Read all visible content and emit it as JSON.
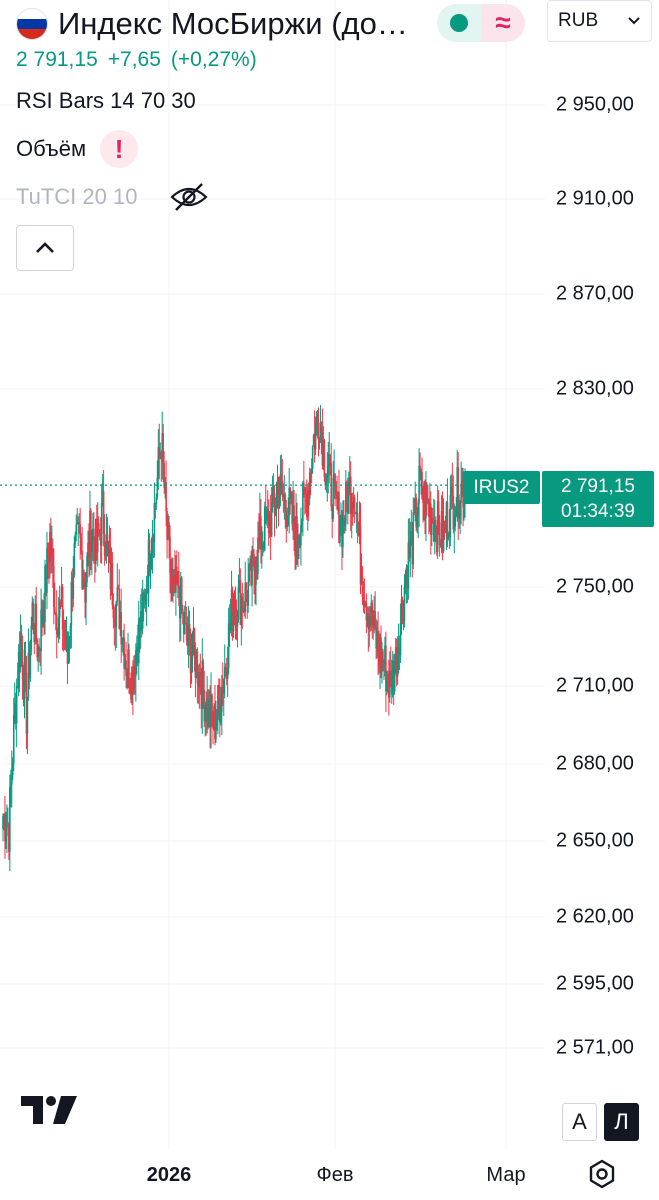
{
  "header": {
    "title": "Индекс МосБиржи (доп…",
    "flag_colors": [
      "#ffffff",
      "#0039a6",
      "#d52b1e"
    ],
    "status_open_color": "#089981",
    "status_delay_symbol": "≈",
    "currency": "RUB"
  },
  "quote": {
    "price": "2 791,15",
    "change": "+7,65",
    "change_pct": "(+0,27%)",
    "color": "#089981"
  },
  "indicators": [
    {
      "label": "RSI Bars 14 70 30",
      "state": "visible"
    },
    {
      "label": "Объём",
      "state": "error",
      "badge": "!"
    },
    {
      "label": "TuTCI 20 10",
      "state": "hidden",
      "icon": "eye-off-icon"
    }
  ],
  "collapse_icon": "chevron-up-icon",
  "price_scale": {
    "labels": [
      "2 950,00",
      "2 910,00",
      "2 870,00",
      "2 830,00",
      "2 750,00",
      "2 710,00",
      "2 680,00",
      "2 650,00",
      "2 620,00",
      "2 595,00",
      "2 571,00"
    ],
    "current_symbol": "IRUS2",
    "current_price": "2 791,15",
    "countdown": "01:34:39",
    "auto_button": "A",
    "log_button": "Л"
  },
  "time_scale": {
    "labels": [
      {
        "text": "2026",
        "bold": true
      },
      {
        "text": "Фев",
        "bold": false
      },
      {
        "text": "Мар",
        "bold": false
      }
    ]
  },
  "chart_data": {
    "type": "candlestick",
    "symbol": "IRUS2",
    "up_color": "#089981",
    "down_color": "#f23645",
    "last_price": 2791.15,
    "y_ticks": [
      2950,
      2910,
      2870,
      2830,
      2750,
      2710,
      2680,
      2650,
      2620,
      2595,
      2571
    ],
    "x_ticks": [
      "2026",
      "Фев",
      "Мар"
    ],
    "closes": [
      2660,
      2655,
      2700,
      2730,
      2700,
      2740,
      2725,
      2745,
      2770,
      2740,
      2740,
      2720,
      2760,
      2770,
      2750,
      2775,
      2765,
      2780,
      2760,
      2745,
      2740,
      2720,
      2715,
      2730,
      2740,
      2765,
      2785,
      2810,
      2770,
      2745,
      2750,
      2730,
      2725,
      2720,
      2710,
      2700,
      2695,
      2705,
      2720,
      2740,
      2745,
      2745,
      2750,
      2760,
      2770,
      2775,
      2780,
      2790,
      2785,
      2780,
      2770,
      2780,
      2790,
      2810,
      2820,
      2800,
      2790,
      2780,
      2775,
      2790,
      2790,
      2760,
      2745,
      2735,
      2725,
      2720,
      2710,
      2720,
      2740,
      2760,
      2770,
      2790,
      2785,
      2780,
      2775,
      2770,
      2780,
      2785,
      2790,
      2791
    ]
  }
}
